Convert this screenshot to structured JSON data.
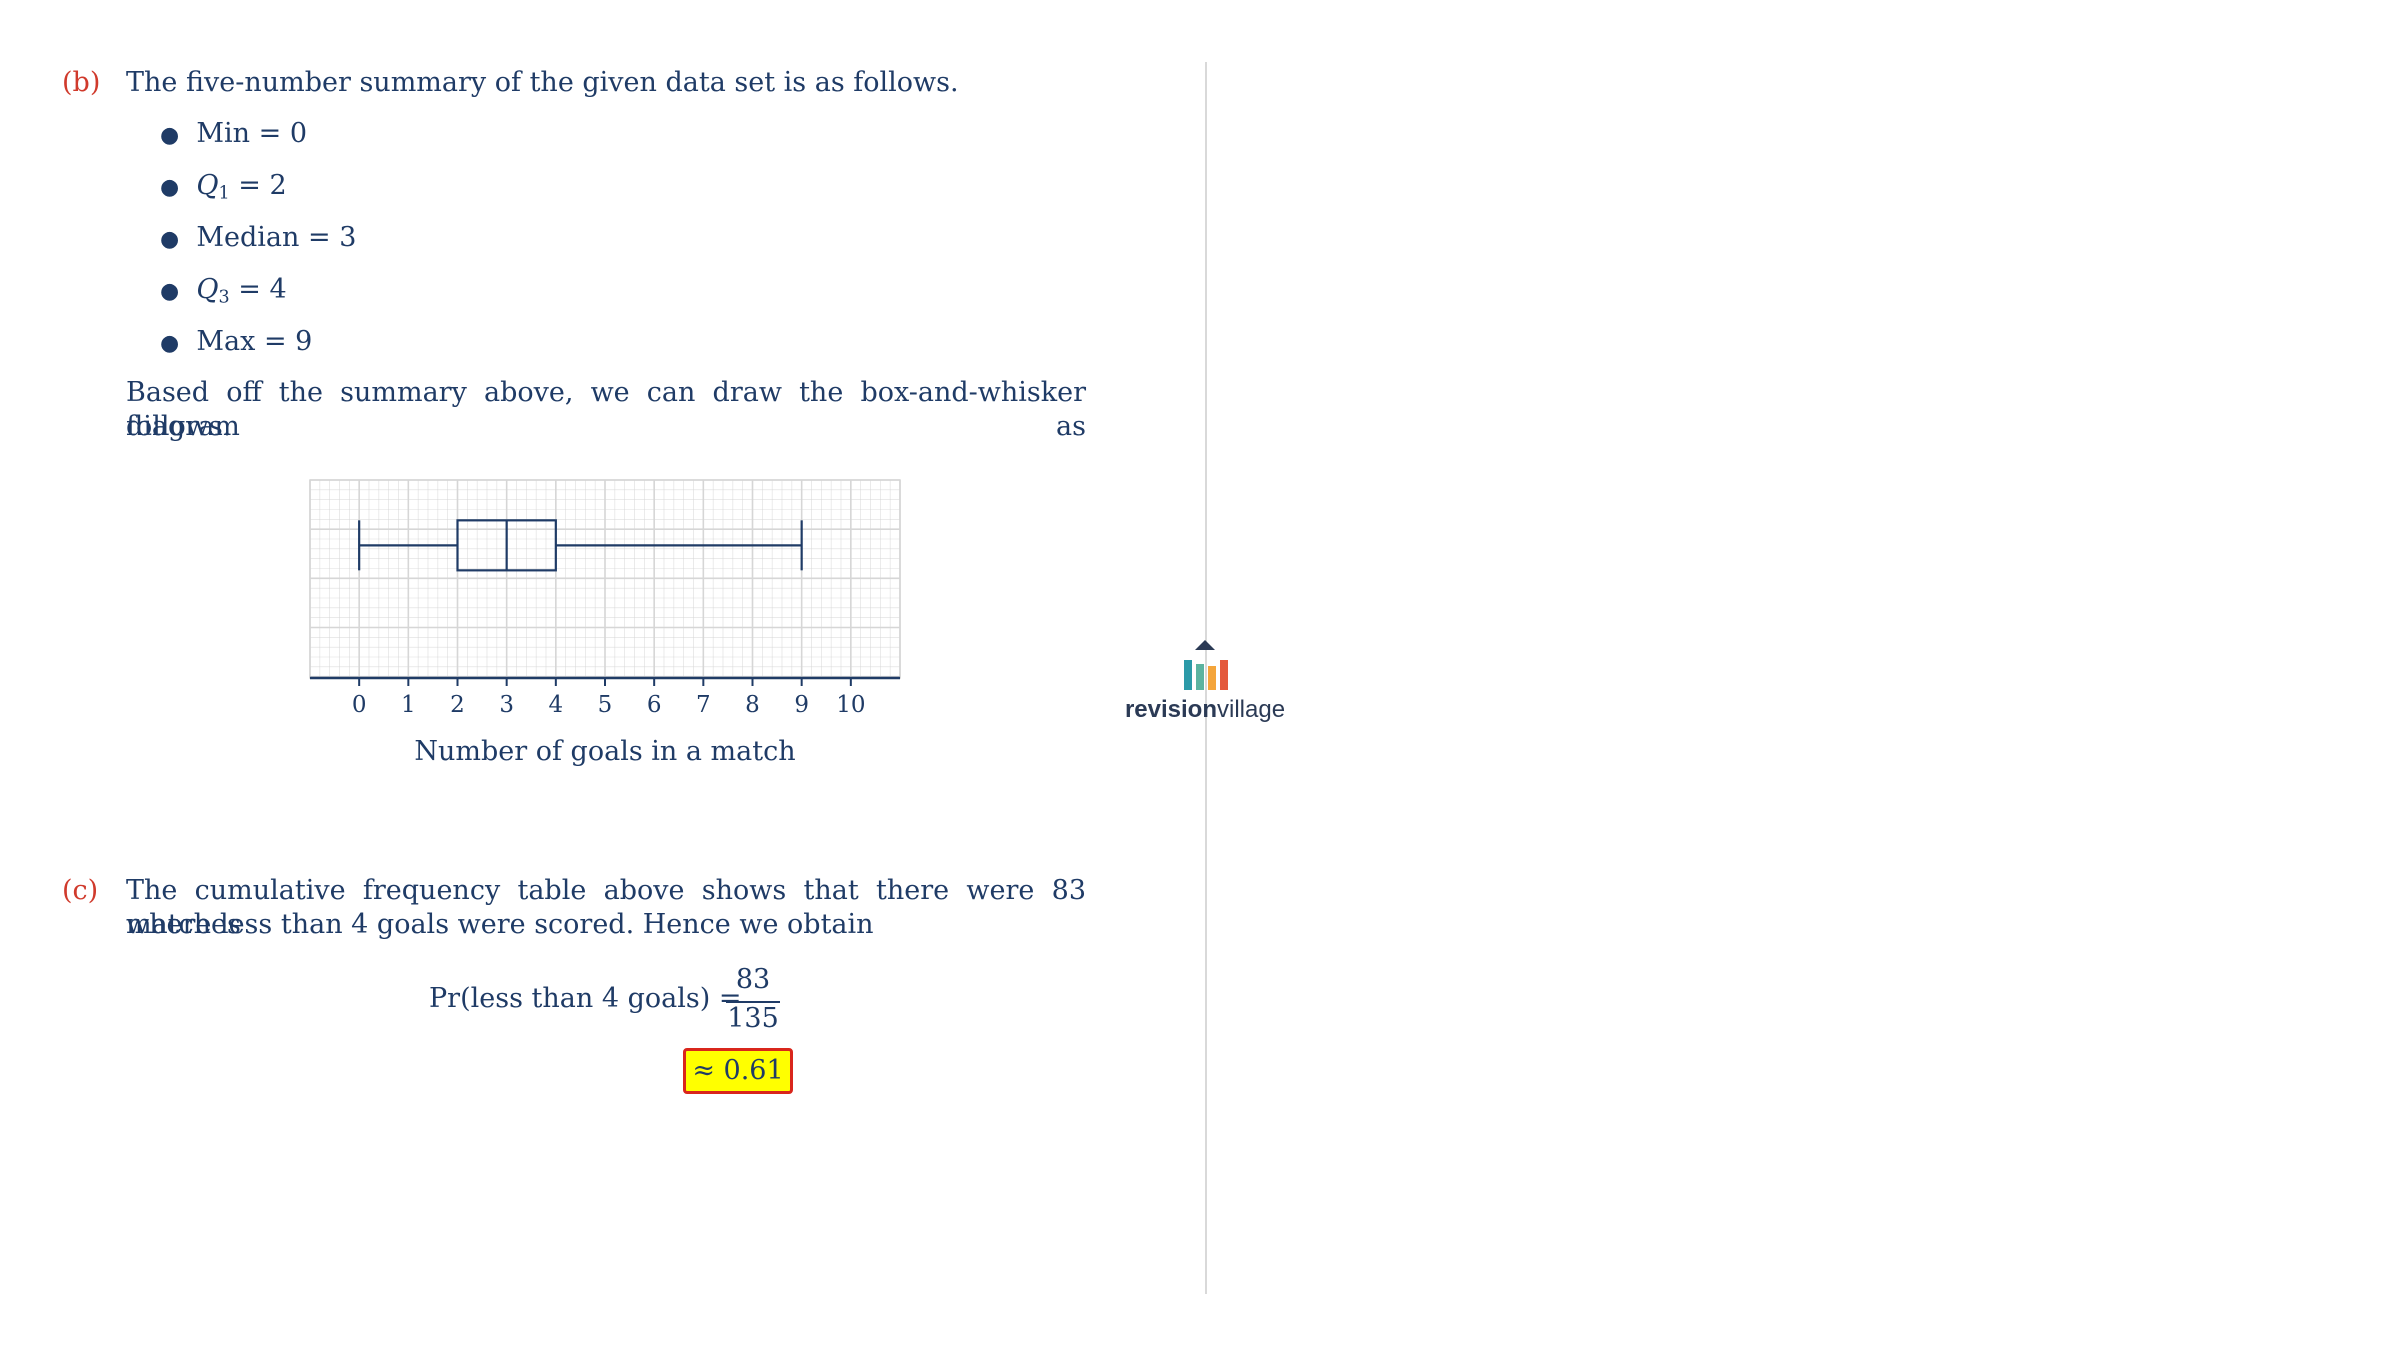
{
  "part_b": {
    "label": "(b)",
    "intro": "The five-number summary of the given data set is as follows.",
    "bullets": [
      {
        "name": "Min",
        "sub": "",
        "value": "= 0"
      },
      {
        "name": "Q",
        "sub": "1",
        "value": "= 2"
      },
      {
        "name": "Median",
        "sub": "",
        "value": "= 3"
      },
      {
        "name": "Q",
        "sub": "3",
        "value": "= 4"
      },
      {
        "name": "Max",
        "sub": "",
        "value": "= 9"
      }
    ],
    "para_line1": "Based off the summary above, we can draw the box-and-whisker diagram as",
    "para_line2": "follows."
  },
  "chart_data": {
    "type": "boxplot",
    "min": 0,
    "q1": 2,
    "median": 3,
    "q3": 4,
    "max": 9,
    "xlim": [
      -1,
      11
    ],
    "ticks": [
      0,
      1,
      2,
      3,
      4,
      5,
      6,
      7,
      8,
      9,
      10
    ],
    "tick_labels": [
      "0",
      "1",
      "2",
      "3",
      "4",
      "5",
      "6",
      "7",
      "8",
      "9",
      "10"
    ],
    "xlabel": "Number of goals in a match",
    "grid": true,
    "line_color": "#1f3b66",
    "grid_color": "#d6d6d6"
  },
  "part_c": {
    "label": "(c)",
    "line1": "The cumulative frequency table above shows that there were 83 matches",
    "line2": "where less than 4 goals were scored. Hence we obtain",
    "expr_left": "Pr(less than 4 goals) =",
    "numerator": "83",
    "denominator": "135",
    "answer": "≈ 0.61"
  },
  "logo": {
    "bold": "revision",
    "regular": "village",
    "colors": [
      "#2b9aa8",
      "#5bb3a0",
      "#f4a53b",
      "#e4593c"
    ]
  }
}
